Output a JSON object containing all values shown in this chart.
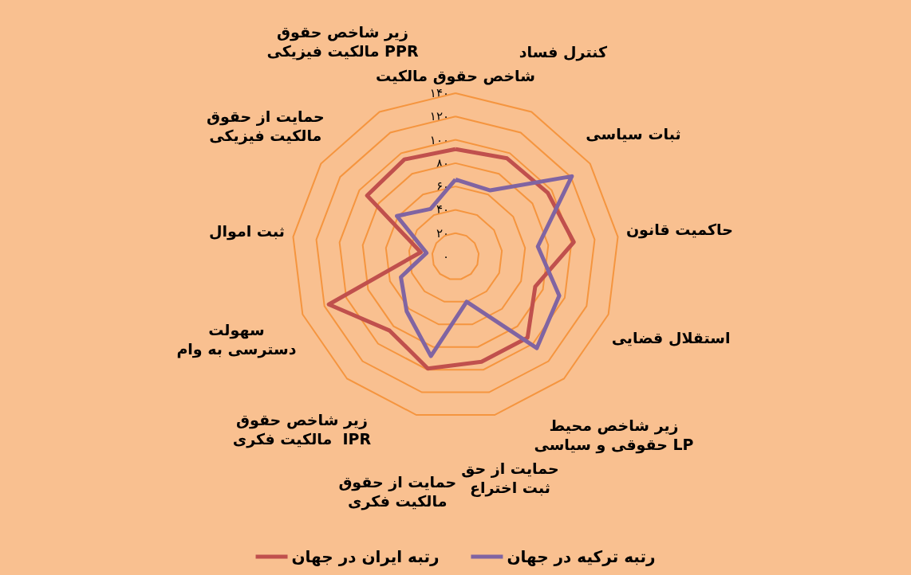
{
  "chart_data": {
    "type": "radar",
    "categories": [
      "شاخص حقوق مالکیت",
      "کنترل فساد",
      "ثبات سیاسی",
      "حاکمیت قانون",
      "استقلال قضایی",
      "زیر شاخص محیط حقوقی و سیاسی LP",
      "حمایت از حق ثبت اختراع",
      "حمایت از حقوق مالکیت فکری",
      "زیر شاخص حقوق مالکیت فکری  IPR",
      "سهولت دسترسی به وام",
      "ثبت اموال",
      "حمایت از حقوق مالکیت فیزیکی",
      "زیر شاخص حقوق مالکیت فیزیکی PPR"
    ],
    "series": [
      {
        "name": "رتبه ایران در جهان",
        "color": "#c0504d",
        "values": [
          92,
          95,
          96,
          102,
          73,
          93,
          93,
          99,
          85,
          116,
          30,
          92,
          94
        ]
      },
      {
        "name": "رتبه ترکیه در جهان",
        "color": "#8064a2",
        "values": [
          66,
          64,
          121,
          71,
          95,
          105,
          40,
          88,
          63,
          50,
          25,
          61,
          46
        ]
      }
    ],
    "ylim": [
      0,
      140
    ],
    "yticks": [
      {
        "value": 0,
        "label": "۰"
      },
      {
        "value": 20,
        "label": "۲۰"
      },
      {
        "value": 40,
        "label": "۴۰"
      },
      {
        "value": 60,
        "label": "۶۰"
      },
      {
        "value": 80,
        "label": "۸۰"
      },
      {
        "value": 100,
        "label": "۱۰۰"
      },
      {
        "value": 120,
        "label": "۱۲۰"
      },
      {
        "value": 140,
        "label": "۱۴۰"
      }
    ],
    "grid": true,
    "legend": "bottom",
    "marker": "none",
    "line_style": "solid"
  }
}
